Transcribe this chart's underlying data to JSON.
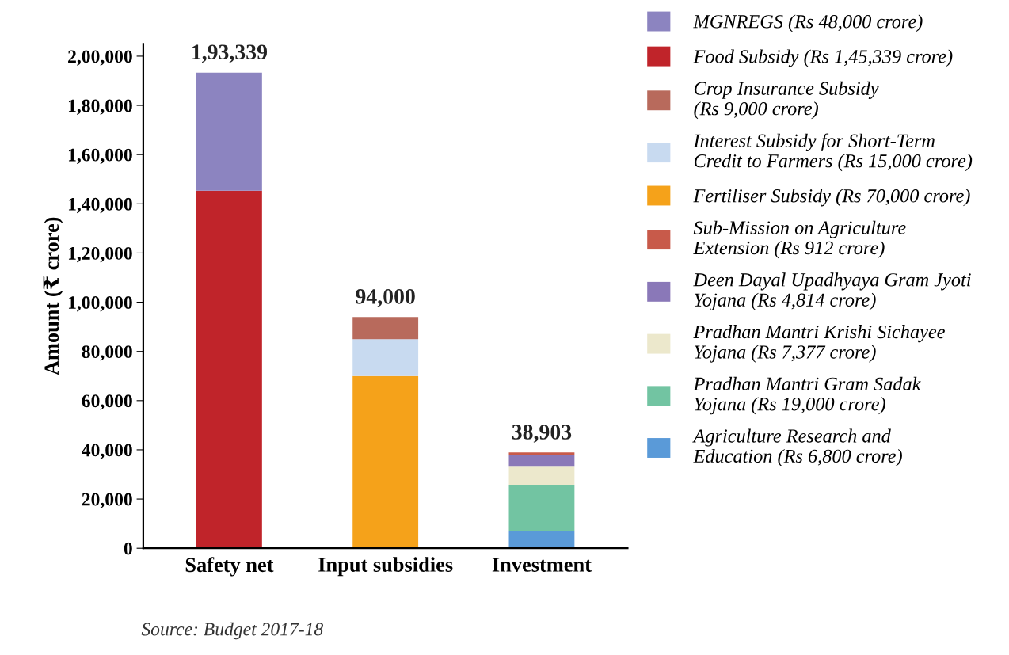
{
  "chart_data": {
    "type": "bar",
    "stacked": true,
    "categories": [
      "Safety net",
      "Input subsidies",
      "Investment"
    ],
    "ylabel": "Amount (₹ crore)",
    "ylim": [
      0,
      205000
    ],
    "yticks": [
      0,
      {
        "value": 20000,
        "label": "20,000"
      },
      {
        "value": 40000,
        "label": "40,000"
      },
      {
        "value": 60000,
        "label": "60,000"
      },
      {
        "value": 80000,
        "label": "80,000"
      },
      {
        "value": 100000,
        "label": "1,00,000"
      },
      {
        "value": 120000,
        "label": "1,20,000"
      },
      {
        "value": 140000,
        "label": "1,40,000"
      },
      {
        "value": 160000,
        "label": "1,60,000"
      },
      {
        "value": 180000,
        "label": "1,80,000"
      },
      {
        "value": 200000,
        "label": "2,00,000"
      }
    ],
    "totals": [
      "1,93,339",
      "94,000",
      "38,903"
    ],
    "grid": false,
    "legend": "right",
    "annotations": [
      "Source: Budget 2017-18"
    ],
    "series": [
      {
        "name": "Agriculture Research and\nEducation (Rs 6,800 crore)",
        "color": "#5a9ad8",
        "values": [
          null,
          null,
          6800
        ]
      },
      {
        "name": "Pradhan Mantri Gram Sadak\nYojana (Rs 19,000 crore)",
        "color": "#72c4a2",
        "values": [
          null,
          null,
          19000
        ]
      },
      {
        "name": "Pradhan Mantri Krishi Sichayee\nYojana (Rs 7,377 crore)",
        "color": "#ece8cc",
        "values": [
          null,
          null,
          7377
        ]
      },
      {
        "name": "Deen Dayal Upadhyaya Gram Jyoti\nYojana (Rs 4,814 crore)",
        "color": "#8a78b8",
        "values": [
          null,
          null,
          4814
        ]
      },
      {
        "name": "Sub-Mission on Agriculture\nExtension (Rs 912 crore)",
        "color": "#c85a4a",
        "values": [
          null,
          null,
          912
        ]
      },
      {
        "name": "Fertiliser Subsidy (Rs 70,000 crore)",
        "color": "#f5a21a",
        "values": [
          null,
          70000,
          null
        ]
      },
      {
        "name": "Interest Subsidy for Short-Term\nCredit to Farmers (Rs 15,000 crore)",
        "color": "#c8daf0",
        "values": [
          null,
          15000,
          null
        ]
      },
      {
        "name": "Crop Insurance Subsidy\n(Rs 9,000 crore)",
        "color": "#b86a5c",
        "values": [
          null,
          9000,
          null
        ]
      },
      {
        "name": "Food Subsidy (Rs 1,45,339 crore)",
        "color": "#c0242a",
        "values": [
          145339,
          null,
          null
        ]
      },
      {
        "name": "MGNREGS (Rs 48,000 crore)",
        "color": "#8c84c0",
        "values": [
          48000,
          null,
          null
        ]
      }
    ]
  }
}
